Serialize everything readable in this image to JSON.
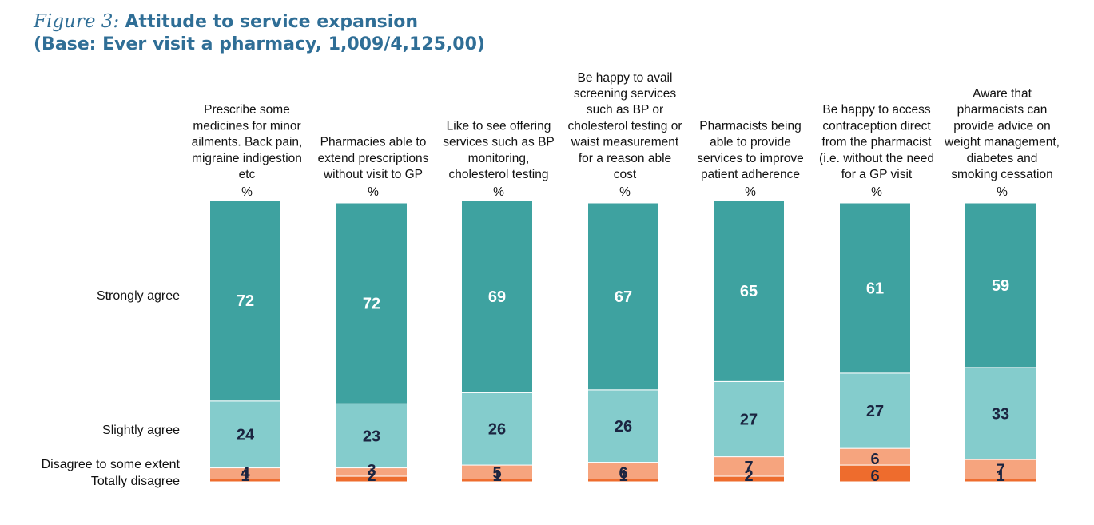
{
  "figure": {
    "number": "Figure 3:",
    "title": "Attitude to service expansion",
    "base": "(Base: Ever visit a pharmacy, 1,009/4,125,00)"
  },
  "colors": {
    "strongly_agree": "#3ea2a0",
    "slightly_agree": "#84cccc",
    "disagree_some": "#f6a47e",
    "totally_disagree": "#ee6c2d",
    "title": "#2f6e96"
  },
  "chart_data": {
    "type": "bar",
    "stacked": true,
    "unit": "%",
    "categories": [
      [
        "Prescribe some",
        "medicines for minor",
        "ailments.  Back pain,",
        "migraine indigestion",
        "etc"
      ],
      [
        "Pharmacies able to",
        "extend prescriptions",
        "without visit to GP"
      ],
      [
        "Like to see offering",
        "services such as BP",
        "monitoring,",
        "cholesterol testing"
      ],
      [
        "Be happy to avail",
        "screening services",
        "such as BP or",
        "cholesterol testing or",
        "waist measurement",
        "for a reason able",
        "cost"
      ],
      [
        "Pharmacists being",
        "able to provide",
        "services to improve",
        "patient adherence"
      ],
      [
        "Be happy to access",
        "contraception direct",
        "from the pharmacist",
        "(i.e. without the need",
        "for a GP visit"
      ],
      [
        "Aware that",
        "pharmacists can",
        "provide advice on",
        "weight management,",
        "diabetes and",
        "smoking cessation"
      ]
    ],
    "series": [
      {
        "name": "Strongly agree",
        "values": [
          72,
          72,
          69,
          67,
          65,
          61,
          59
        ]
      },
      {
        "name": "Slightly agree",
        "values": [
          24,
          23,
          26,
          26,
          27,
          27,
          33
        ]
      },
      {
        "name": "Disagree to some extent",
        "values": [
          4,
          3,
          5,
          6,
          7,
          6,
          7
        ]
      },
      {
        "name": "Totally disagree",
        "values": [
          1,
          2,
          1,
          1,
          2,
          6,
          1
        ]
      }
    ],
    "ylim": [
      0,
      100
    ]
  }
}
